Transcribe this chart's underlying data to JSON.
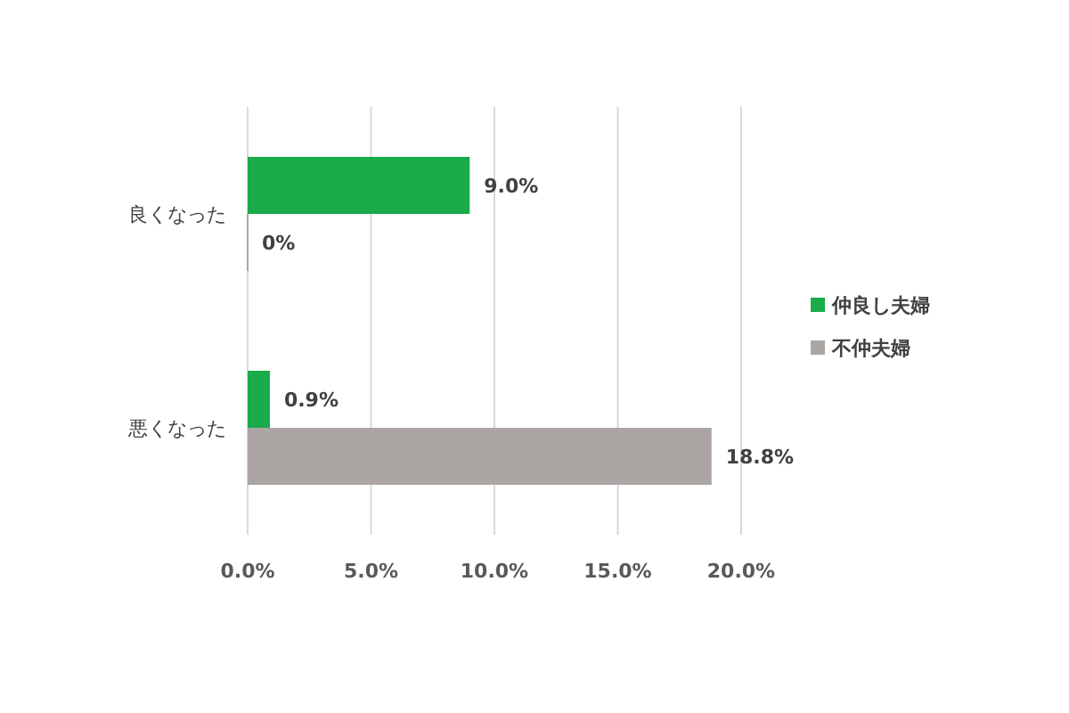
{
  "chart_data": {
    "type": "bar",
    "orientation": "horizontal",
    "categories": [
      "良くなった",
      "悪くなった"
    ],
    "series": [
      {
        "name": "仲良し夫婦",
        "color": "#1aab4b",
        "values": [
          9.0,
          0.9
        ],
        "value_labels": [
          "9.0%",
          "0.9%"
        ]
      },
      {
        "name": "不仲夫婦",
        "color": "#aba6a4",
        "values": [
          0,
          18.8
        ],
        "value_labels": [
          "0%",
          "18.8%"
        ]
      }
    ],
    "xlim": [
      0,
      20
    ],
    "xticks": [
      {
        "value": 0,
        "label": "0.0%"
      },
      {
        "value": 5,
        "label": "5.0%"
      },
      {
        "value": 10,
        "label": "10.0%"
      },
      {
        "value": 15,
        "label": "15.0%"
      },
      {
        "value": 20,
        "label": "20.0%"
      }
    ],
    "grid": "x",
    "legend": "right"
  }
}
